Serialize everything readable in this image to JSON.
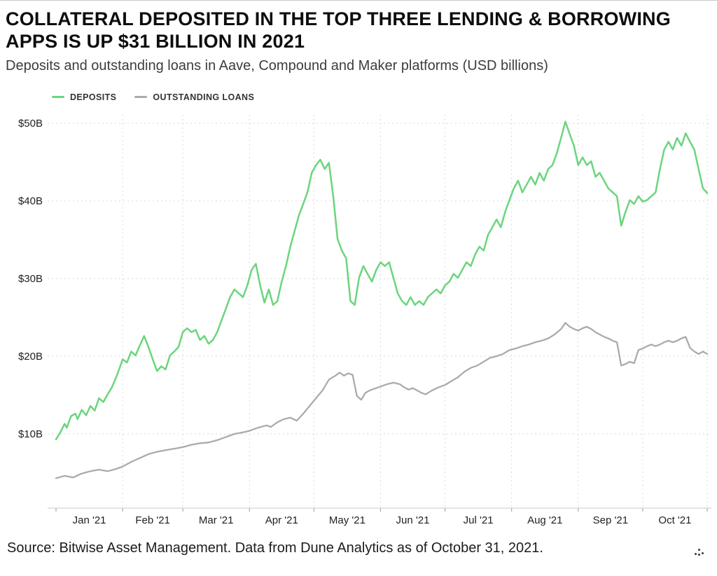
{
  "chart_data": {
    "type": "line",
    "title": "COLLATERAL DEPOSITED IN THE TOP THREE LENDING & BORROWING APPS IS UP $31 BILLION IN 2021",
    "subtitle": "Deposits and outstanding loans in Aave, Compound and Maker platforms (USD billions)",
    "source": "Source: Bitwise Asset Management. Data from Dune Analytics as of October 31, 2021.",
    "x_unit": "days since Jan 1, 2021",
    "x_tick_labels": [
      "Jan '21",
      "Feb '21",
      "Mar '21",
      "Apr '21",
      "May '21",
      "Jun '21",
      "Jul '21",
      "Aug '21",
      "Sep '21",
      "Oct '21"
    ],
    "month_start_days": [
      0,
      31,
      59,
      90,
      120,
      151,
      181,
      212,
      243,
      273,
      304
    ],
    "y_ticks": [
      10,
      20,
      30,
      40,
      50
    ],
    "y_tick_labels": [
      "$10B",
      "$20B",
      "$30B",
      "$40B",
      "$50B"
    ],
    "ylim": [
      0,
      52
    ],
    "grid": "dashed horizontal and vertical",
    "legend_position": "top-left",
    "series": [
      {
        "name": "DEPOSITS",
        "color": "#6BD57E",
        "width": 2.5,
        "points": [
          [
            0,
            9.3
          ],
          [
            2,
            10.2
          ],
          [
            4,
            11.3
          ],
          [
            5,
            10.8
          ],
          [
            7,
            12.3
          ],
          [
            9,
            12.6
          ],
          [
            10,
            11.9
          ],
          [
            12,
            13.1
          ],
          [
            14,
            12.4
          ],
          [
            16,
            13.6
          ],
          [
            18,
            13.0
          ],
          [
            20,
            14.6
          ],
          [
            22,
            14.1
          ],
          [
            24,
            15.1
          ],
          [
            26,
            16.0
          ],
          [
            28,
            17.3
          ],
          [
            30,
            18.8
          ],
          [
            31,
            19.6
          ],
          [
            33,
            19.2
          ],
          [
            35,
            20.6
          ],
          [
            37,
            20.1
          ],
          [
            39,
            21.4
          ],
          [
            41,
            22.6
          ],
          [
            43,
            21.2
          ],
          [
            45,
            19.6
          ],
          [
            47,
            18.1
          ],
          [
            49,
            18.7
          ],
          [
            51,
            18.3
          ],
          [
            53,
            20.1
          ],
          [
            55,
            20.6
          ],
          [
            57,
            21.2
          ],
          [
            59,
            23.1
          ],
          [
            61,
            23.6
          ],
          [
            63,
            23.1
          ],
          [
            65,
            23.4
          ],
          [
            67,
            22.1
          ],
          [
            69,
            22.6
          ],
          [
            71,
            21.6
          ],
          [
            73,
            22.1
          ],
          [
            75,
            23.1
          ],
          [
            77,
            24.6
          ],
          [
            79,
            26.1
          ],
          [
            81,
            27.6
          ],
          [
            83,
            28.6
          ],
          [
            85,
            28.1
          ],
          [
            87,
            27.6
          ],
          [
            89,
            29.1
          ],
          [
            91,
            31.1
          ],
          [
            93,
            31.9
          ],
          [
            95,
            29.1
          ],
          [
            97,
            26.9
          ],
          [
            99,
            28.6
          ],
          [
            101,
            26.6
          ],
          [
            103,
            27.1
          ],
          [
            105,
            29.6
          ],
          [
            107,
            31.6
          ],
          [
            109,
            34.1
          ],
          [
            111,
            36.1
          ],
          [
            113,
            38.1
          ],
          [
            115,
            39.6
          ],
          [
            117,
            41.1
          ],
          [
            119,
            43.6
          ],
          [
            121,
            44.6
          ],
          [
            123,
            45.3
          ],
          [
            125,
            44.1
          ],
          [
            127,
            44.9
          ],
          [
            129,
            40.6
          ],
          [
            131,
            35.1
          ],
          [
            133,
            33.6
          ],
          [
            135,
            32.6
          ],
          [
            137,
            27.1
          ],
          [
            139,
            26.6
          ],
          [
            141,
            30.1
          ],
          [
            143,
            31.6
          ],
          [
            145,
            30.6
          ],
          [
            147,
            29.6
          ],
          [
            149,
            31.1
          ],
          [
            151,
            32.1
          ],
          [
            153,
            31.6
          ],
          [
            155,
            32.1
          ],
          [
            157,
            30.1
          ],
          [
            159,
            28.1
          ],
          [
            161,
            27.1
          ],
          [
            163,
            26.6
          ],
          [
            165,
            27.6
          ],
          [
            167,
            26.6
          ],
          [
            169,
            27.1
          ],
          [
            171,
            26.6
          ],
          [
            173,
            27.6
          ],
          [
            175,
            28.1
          ],
          [
            177,
            28.6
          ],
          [
            179,
            28.1
          ],
          [
            181,
            29.1
          ],
          [
            183,
            29.6
          ],
          [
            185,
            30.6
          ],
          [
            187,
            30.1
          ],
          [
            189,
            31.1
          ],
          [
            191,
            32.1
          ],
          [
            193,
            31.6
          ],
          [
            195,
            33.1
          ],
          [
            197,
            34.1
          ],
          [
            199,
            33.6
          ],
          [
            201,
            35.6
          ],
          [
            203,
            36.6
          ],
          [
            205,
            37.6
          ],
          [
            207,
            36.6
          ],
          [
            209,
            38.6
          ],
          [
            211,
            40.1
          ],
          [
            213,
            41.6
          ],
          [
            215,
            42.6
          ],
          [
            217,
            41.1
          ],
          [
            219,
            42.1
          ],
          [
            221,
            43.1
          ],
          [
            223,
            42.1
          ],
          [
            225,
            43.6
          ],
          [
            227,
            42.6
          ],
          [
            229,
            44.1
          ],
          [
            231,
            44.6
          ],
          [
            233,
            46.1
          ],
          [
            235,
            48.1
          ],
          [
            237,
            50.2
          ],
          [
            239,
            48.6
          ],
          [
            241,
            47.1
          ],
          [
            243,
            44.6
          ],
          [
            245,
            45.6
          ],
          [
            247,
            44.6
          ],
          [
            249,
            45.1
          ],
          [
            251,
            43.1
          ],
          [
            253,
            43.6
          ],
          [
            255,
            42.6
          ],
          [
            257,
            41.6
          ],
          [
            259,
            41.1
          ],
          [
            261,
            40.6
          ],
          [
            263,
            36.8
          ],
          [
            265,
            38.6
          ],
          [
            267,
            40.1
          ],
          [
            269,
            39.6
          ],
          [
            271,
            40.6
          ],
          [
            273,
            39.9
          ],
          [
            275,
            40.1
          ],
          [
            277,
            40.6
          ],
          [
            279,
            41.1
          ],
          [
            281,
            44.1
          ],
          [
            283,
            46.6
          ],
          [
            285,
            47.6
          ],
          [
            287,
            46.6
          ],
          [
            289,
            48.1
          ],
          [
            291,
            47.1
          ],
          [
            293,
            48.7
          ],
          [
            295,
            47.6
          ],
          [
            297,
            46.6
          ],
          [
            299,
            44.1
          ],
          [
            301,
            41.6
          ],
          [
            303,
            41.0
          ]
        ]
      },
      {
        "name": "OUTSTANDING LOANS",
        "color": "#ABABAB",
        "width": 2.3,
        "points": [
          [
            0,
            4.3
          ],
          [
            4,
            4.6
          ],
          [
            8,
            4.4
          ],
          [
            12,
            4.9
          ],
          [
            16,
            5.2
          ],
          [
            20,
            5.4
          ],
          [
            24,
            5.2
          ],
          [
            28,
            5.5
          ],
          [
            31,
            5.8
          ],
          [
            35,
            6.4
          ],
          [
            39,
            6.9
          ],
          [
            43,
            7.4
          ],
          [
            47,
            7.7
          ],
          [
            51,
            7.9
          ],
          [
            55,
            8.1
          ],
          [
            59,
            8.3
          ],
          [
            63,
            8.6
          ],
          [
            67,
            8.8
          ],
          [
            71,
            8.9
          ],
          [
            75,
            9.2
          ],
          [
            79,
            9.6
          ],
          [
            83,
            10.0
          ],
          [
            87,
            10.2
          ],
          [
            90,
            10.4
          ],
          [
            94,
            10.8
          ],
          [
            98,
            11.1
          ],
          [
            100,
            10.9
          ],
          [
            103,
            11.5
          ],
          [
            106,
            11.9
          ],
          [
            109,
            12.1
          ],
          [
            112,
            11.7
          ],
          [
            115,
            12.6
          ],
          [
            118,
            13.6
          ],
          [
            121,
            14.6
          ],
          [
            124,
            15.6
          ],
          [
            127,
            17.0
          ],
          [
            130,
            17.5
          ],
          [
            132,
            17.9
          ],
          [
            134,
            17.5
          ],
          [
            136,
            17.8
          ],
          [
            138,
            17.6
          ],
          [
            140,
            14.9
          ],
          [
            142,
            14.4
          ],
          [
            144,
            15.3
          ],
          [
            146,
            15.6
          ],
          [
            148,
            15.8
          ],
          [
            151,
            16.1
          ],
          [
            154,
            16.4
          ],
          [
            157,
            16.6
          ],
          [
            160,
            16.4
          ],
          [
            162,
            16.0
          ],
          [
            164,
            15.7
          ],
          [
            166,
            15.9
          ],
          [
            168,
            15.6
          ],
          [
            170,
            15.3
          ],
          [
            172,
            15.1
          ],
          [
            175,
            15.6
          ],
          [
            178,
            16.0
          ],
          [
            181,
            16.3
          ],
          [
            184,
            16.8
          ],
          [
            187,
            17.3
          ],
          [
            190,
            18.0
          ],
          [
            193,
            18.5
          ],
          [
            196,
            18.8
          ],
          [
            199,
            19.3
          ],
          [
            202,
            19.8
          ],
          [
            205,
            20.0
          ],
          [
            208,
            20.3
          ],
          [
            211,
            20.8
          ],
          [
            214,
            21.0
          ],
          [
            217,
            21.3
          ],
          [
            220,
            21.5
          ],
          [
            223,
            21.8
          ],
          [
            226,
            22.0
          ],
          [
            229,
            22.3
          ],
          [
            232,
            22.8
          ],
          [
            235,
            23.5
          ],
          [
            237,
            24.3
          ],
          [
            239,
            23.8
          ],
          [
            241,
            23.5
          ],
          [
            243,
            23.3
          ],
          [
            245,
            23.6
          ],
          [
            247,
            23.8
          ],
          [
            249,
            23.5
          ],
          [
            251,
            23.1
          ],
          [
            253,
            22.8
          ],
          [
            255,
            22.5
          ],
          [
            257,
            22.3
          ],
          [
            259,
            22.0
          ],
          [
            261,
            21.8
          ],
          [
            263,
            18.8
          ],
          [
            265,
            19.0
          ],
          [
            267,
            19.3
          ],
          [
            269,
            19.1
          ],
          [
            271,
            20.8
          ],
          [
            273,
            21.0
          ],
          [
            275,
            21.3
          ],
          [
            277,
            21.5
          ],
          [
            279,
            21.3
          ],
          [
            281,
            21.5
          ],
          [
            283,
            21.8
          ],
          [
            285,
            22.0
          ],
          [
            287,
            21.8
          ],
          [
            289,
            22.0
          ],
          [
            291,
            22.3
          ],
          [
            293,
            22.5
          ],
          [
            295,
            21.1
          ],
          [
            297,
            20.6
          ],
          [
            299,
            20.3
          ],
          [
            301,
            20.6
          ],
          [
            303,
            20.3
          ]
        ]
      }
    ]
  }
}
